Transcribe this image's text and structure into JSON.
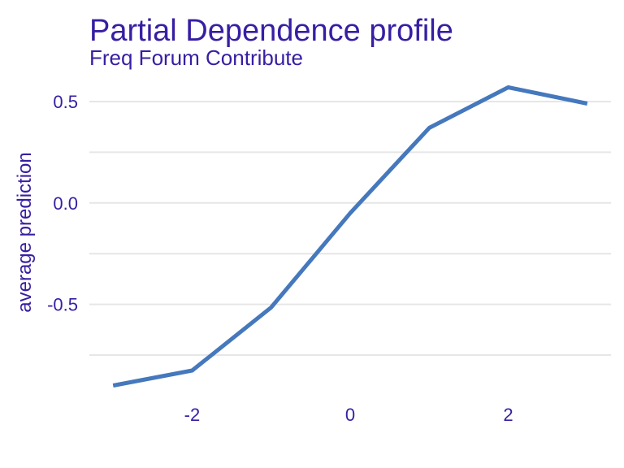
{
  "chart_data": {
    "type": "line",
    "title": "Partial Dependence profile",
    "subtitle": "Freq  Forum  Contribute",
    "xlabel": "",
    "ylabel": "average prediction",
    "x": [
      -3,
      -2,
      -1,
      0,
      1,
      2,
      3
    ],
    "series": [
      {
        "values": [
          -0.9,
          -0.826,
          -0.515,
          -0.05,
          0.37,
          0.57,
          0.49
        ]
      }
    ],
    "xlim": [
      -3.3,
      3.3
    ],
    "ylim": [
      -0.93,
      0.62
    ],
    "x_ticks": [
      -2,
      0,
      2
    ],
    "x_tick_labels": [
      "-2",
      "0",
      "2"
    ],
    "y_ticks": [
      0.5,
      0.0,
      -0.5
    ],
    "y_tick_labels": [
      "0.5",
      "0.0",
      "-0.5"
    ],
    "y_minor_gridlines": [
      0.25,
      -0.25,
      -0.75
    ],
    "grid": true,
    "legend": "none",
    "colors": {
      "line": "#4578bc",
      "text": "#371ea3",
      "grid": "#e6e6e6"
    }
  }
}
